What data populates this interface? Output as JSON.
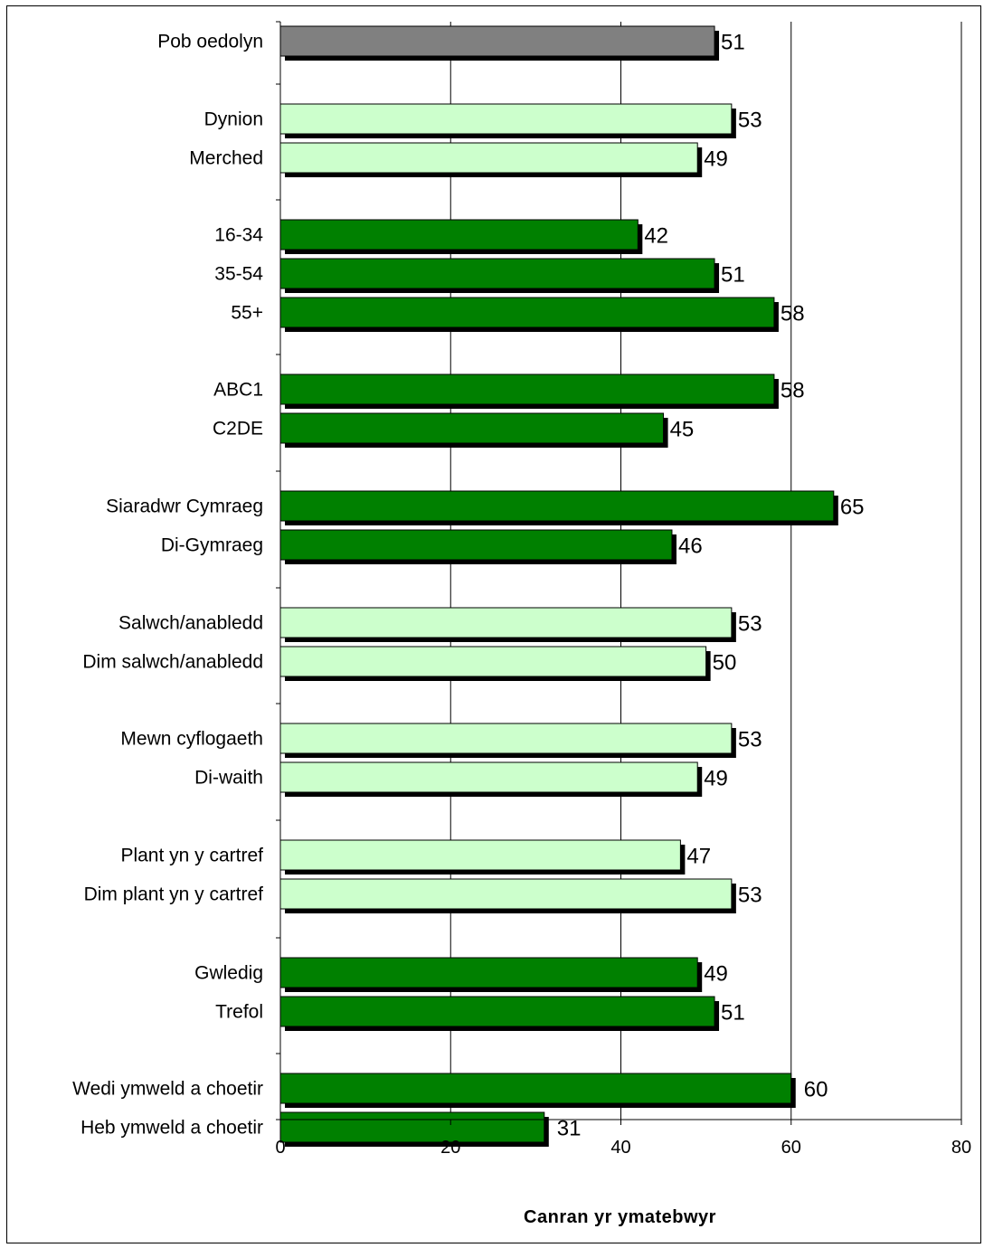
{
  "chart_data": {
    "type": "bar",
    "orientation": "horizontal",
    "xlabel": "Canran yr ymatebwyr",
    "xlim": [
      0,
      80
    ],
    "xticks": [
      0,
      20,
      40,
      60,
      80
    ],
    "grid": true,
    "colors": {
      "overall": "#808080",
      "light": "#ccffcc",
      "dark": "#008000",
      "shadow": "#000000",
      "gridline": "#000000"
    },
    "groups": [
      {
        "bars": [
          {
            "label": "Pob oedolyn",
            "value": 51,
            "color": "overall"
          }
        ]
      },
      {
        "bars": [
          {
            "label": "Dynion",
            "value": 53,
            "color": "light"
          },
          {
            "label": "Merched",
            "value": 49,
            "color": "light"
          }
        ]
      },
      {
        "bars": [
          {
            "label": "16-34",
            "value": 42,
            "color": "dark"
          },
          {
            "label": "35-54",
            "value": 51,
            "color": "dark"
          },
          {
            "label": "55+",
            "value": 58,
            "color": "dark"
          }
        ]
      },
      {
        "bars": [
          {
            "label": "ABC1",
            "value": 58,
            "color": "dark"
          },
          {
            "label": "C2DE",
            "value": 45,
            "color": "dark"
          }
        ]
      },
      {
        "bars": [
          {
            "label": "Siaradwr Cymraeg",
            "value": 65,
            "color": "dark"
          },
          {
            "label": "Di-Gymraeg",
            "value": 46,
            "color": "dark"
          }
        ]
      },
      {
        "bars": [
          {
            "label": "Salwch/anabledd",
            "value": 53,
            "color": "light"
          },
          {
            "label": "Dim salwch/anabledd",
            "value": 50,
            "color": "light"
          }
        ]
      },
      {
        "bars": [
          {
            "label": "Mewn cyflogaeth",
            "value": 53,
            "color": "light"
          },
          {
            "label": "Di-waith",
            "value": 49,
            "color": "light"
          }
        ]
      },
      {
        "bars": [
          {
            "label": "Plant yn y cartref",
            "value": 47,
            "color": "light"
          },
          {
            "label": "Dim plant yn y cartref",
            "value": 53,
            "color": "light"
          }
        ]
      },
      {
        "bars": [
          {
            "label": "Gwledig",
            "value": 49,
            "color": "dark"
          },
          {
            "label": "Trefol",
            "value": 51,
            "color": "dark"
          }
        ]
      },
      {
        "bars": [
          {
            "label": "Wedi ymweld a choetir",
            "value": 60,
            "color": "dark"
          },
          {
            "label": "Heb ymweld a choetir",
            "value": 31,
            "color": "dark"
          }
        ]
      }
    ]
  }
}
